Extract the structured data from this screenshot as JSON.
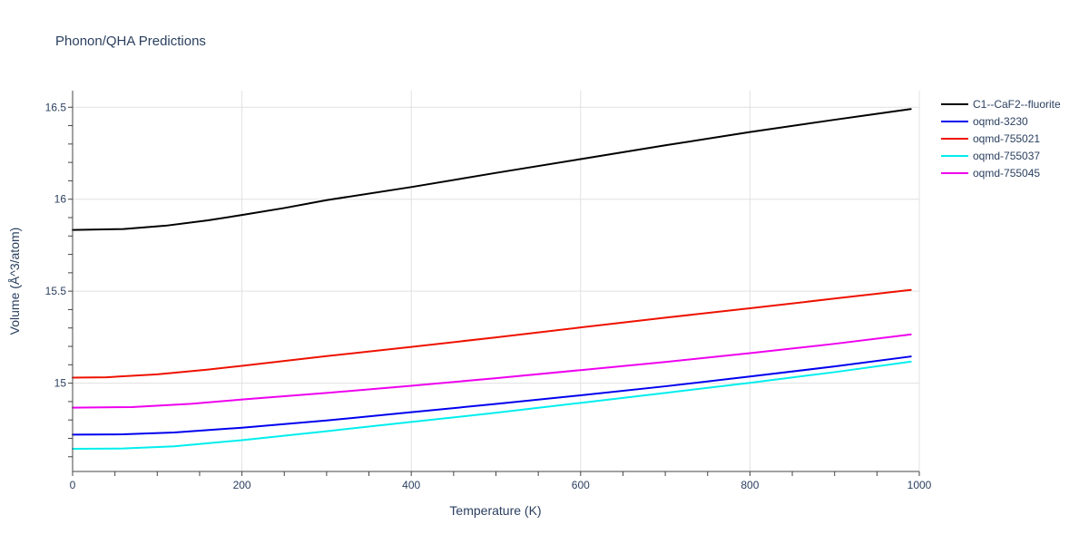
{
  "chart_data": {
    "type": "line",
    "title": "Phonon/QHA Predictions",
    "xlabel": "Temperature (K)",
    "ylabel": "Volume (Å^3/atom)",
    "xlim": [
      0,
      1000
    ],
    "ylim": [
      14.52,
      16.59
    ],
    "xticks": [
      0,
      200,
      400,
      600,
      800,
      1000
    ],
    "xtick_labels": [
      "0",
      "200",
      "400",
      "600",
      "800",
      "1000"
    ],
    "yticks": [
      15,
      15.5,
      16,
      16.5
    ],
    "ytick_labels": [
      "15",
      "15.5",
      "16",
      "16.5"
    ],
    "grid": true,
    "legend_position": "top-right",
    "series": [
      {
        "name": "C1--CaF2--fluorite",
        "color": "#000000",
        "x": [
          0,
          60,
          110,
          160,
          200,
          250,
          300,
          400,
          500,
          600,
          700,
          800,
          900,
          990
        ],
        "y": [
          15.833,
          15.838,
          15.856,
          15.885,
          15.914,
          15.952,
          15.995,
          16.066,
          16.143,
          16.218,
          16.293,
          16.365,
          16.432,
          16.49
        ]
      },
      {
        "name": "oqmd-3230",
        "color": "#0000ee",
        "x": [
          0,
          60,
          120,
          200,
          300,
          400,
          500,
          600,
          700,
          800,
          900,
          990
        ],
        "y": [
          14.72,
          14.722,
          14.732,
          14.758,
          14.797,
          14.842,
          14.887,
          14.934,
          14.983,
          15.036,
          15.091,
          15.145
        ]
      },
      {
        "name": "oqmd-755021",
        "color": "#ee1100",
        "x": [
          0,
          40,
          100,
          160,
          200,
          300,
          400,
          500,
          600,
          700,
          800,
          900,
          990
        ],
        "y": [
          15.03,
          15.032,
          15.048,
          15.074,
          15.094,
          15.147,
          15.197,
          15.249,
          15.303,
          15.356,
          15.407,
          15.46,
          15.507
        ]
      },
      {
        "name": "oqmd-755037",
        "color": "#00eeee",
        "x": [
          0,
          60,
          120,
          200,
          300,
          400,
          500,
          600,
          700,
          800,
          900,
          990
        ],
        "y": [
          14.643,
          14.645,
          14.657,
          14.69,
          14.739,
          14.789,
          14.839,
          14.893,
          14.947,
          15.002,
          15.06,
          15.117
        ]
      },
      {
        "name": "oqmd-755045",
        "color": "#ee00ee",
        "x": [
          0,
          70,
          140,
          200,
          300,
          400,
          500,
          600,
          700,
          800,
          900,
          990
        ],
        "y": [
          14.867,
          14.87,
          14.888,
          14.911,
          14.947,
          14.986,
          15.027,
          15.071,
          15.115,
          15.163,
          15.214,
          15.265
        ]
      }
    ]
  }
}
